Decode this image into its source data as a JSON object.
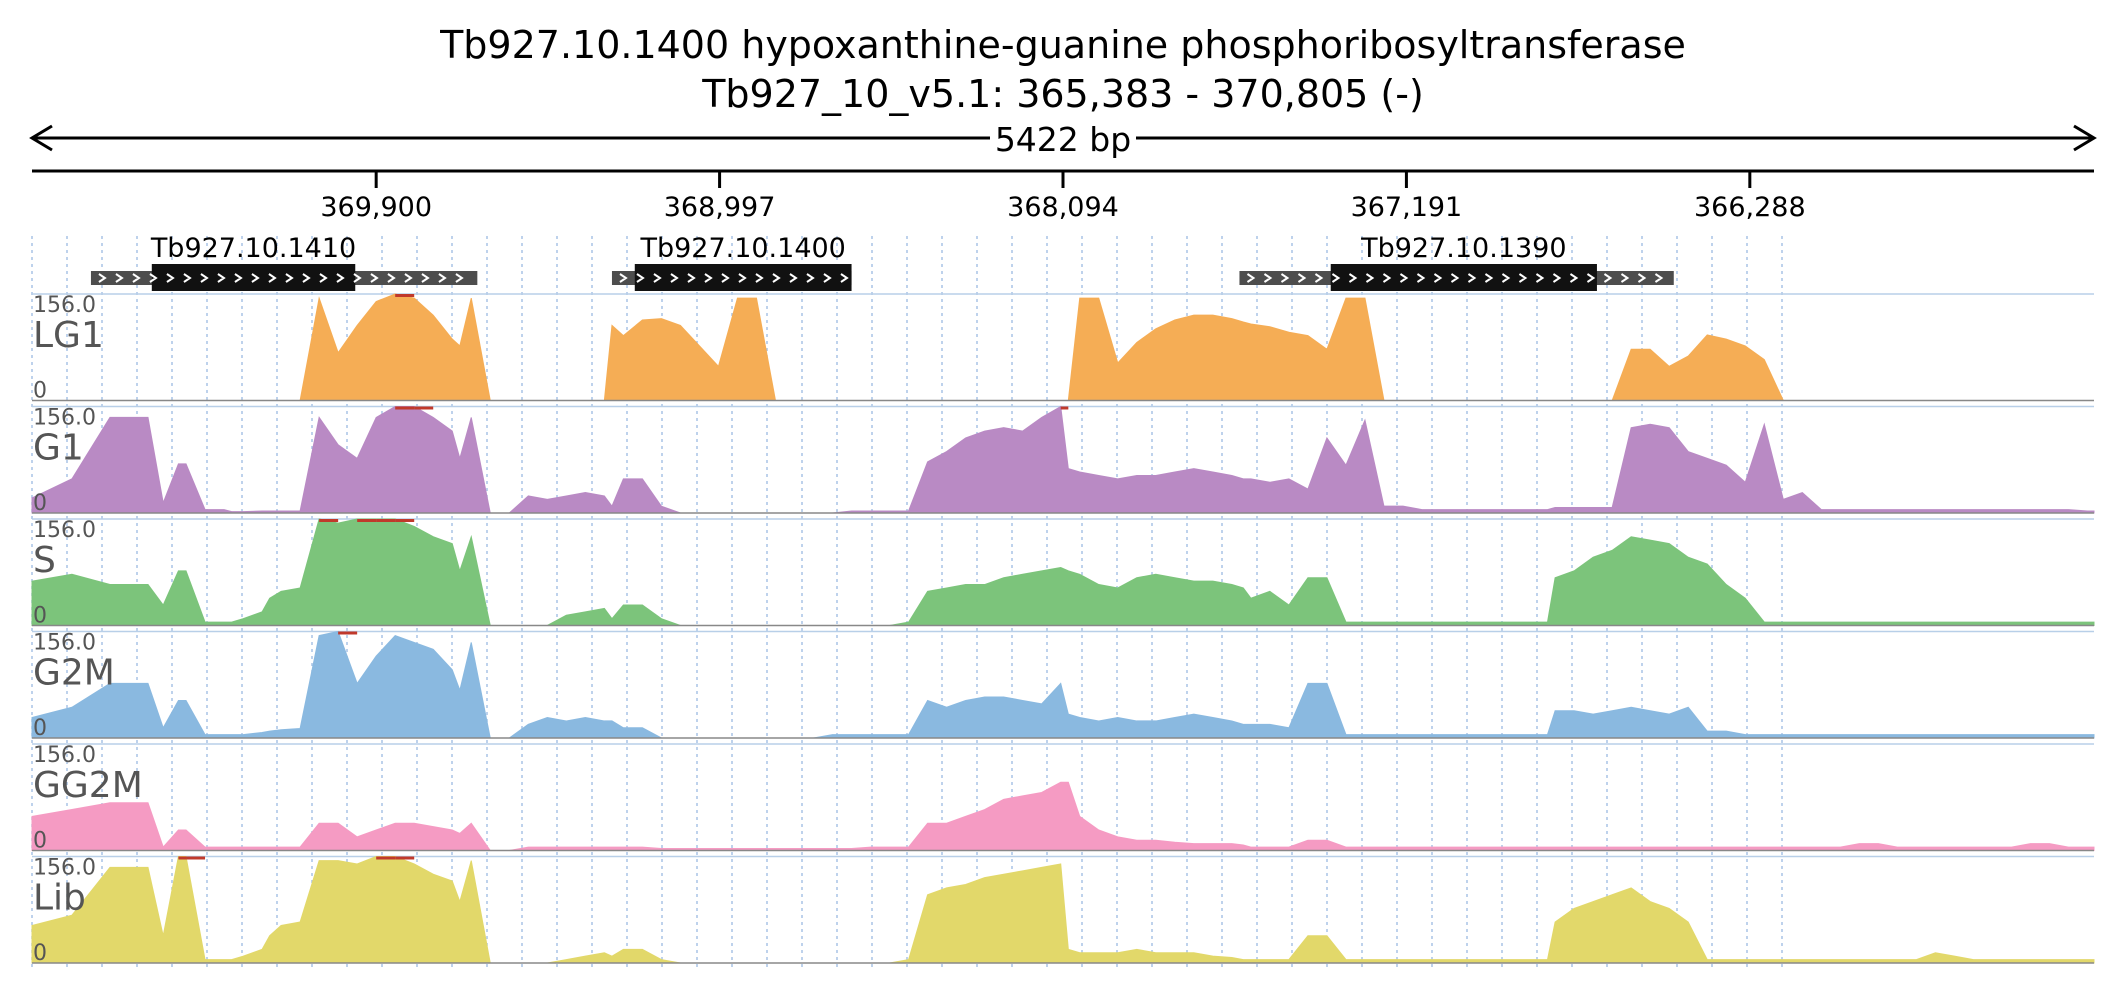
{
  "header": {
    "title": "Tb927.10.1400  hypoxanthine-guanine phosphoribosyltransferase",
    "locus": "Tb927_10_v5.1: 365,383 - 370,805 (-)",
    "span_label": "5422 bp"
  },
  "chart_data": {
    "type": "area",
    "title": "Tb927.10.1400  hypoxanthine-guanine phosphoribosyltransferase",
    "region": {
      "chrom": "Tb927_10_v5.1",
      "start": 365383,
      "end": 370805,
      "strand": "-"
    },
    "xlim": [
      370805,
      365383
    ],
    "ylim": [
      0,
      156.0
    ],
    "x_ticks": [
      369900,
      368997,
      368094,
      367191,
      366288
    ],
    "x_tick_labels": [
      "369,900",
      "368,997",
      "368,094",
      "367,191",
      "366,288"
    ],
    "genes": [
      {
        "name": "Tb927.10.1410",
        "start": 370650,
        "end": 369634,
        "cds_start": 370490,
        "cds_end": 369955
      },
      {
        "name": "Tb927.10.1400",
        "start": 369280,
        "end": 368650,
        "cds_start": 369220,
        "cds_end": 368650
      },
      {
        "name": "Tb927.10.1390",
        "start": 367630,
        "end": 366488,
        "cds_start": 367390,
        "cds_end": 366690
      }
    ],
    "series_x": [
      370805,
      370700,
      370600,
      370500,
      370460,
      370420,
      370400,
      370350,
      370300,
      370280,
      370250,
      370200,
      370180,
      370150,
      370100,
      370050,
      370000,
      369950,
      369900,
      369850,
      369800,
      369750,
      369700,
      369680,
      369650,
      369600,
      369550,
      369500,
      369450,
      369400,
      369350,
      369300,
      369280,
      369250,
      369200,
      369150,
      369100,
      369050,
      369000,
      368950,
      368900,
      368850,
      368800,
      368750,
      368700,
      368650,
      368600,
      368550,
      368500,
      368450,
      368400,
      368350,
      368300,
      368250,
      368200,
      368150,
      368100,
      368080,
      368050,
      368000,
      367950,
      367900,
      367850,
      367800,
      367750,
      367700,
      367650,
      367620,
      367600,
      367550,
      367500,
      367450,
      367400,
      367350,
      367300,
      367250,
      367200,
      367150,
      367100,
      367050,
      367000,
      366950,
      366900,
      366850,
      366820,
      366800,
      366750,
      366700,
      366650,
      366600,
      366550,
      366500,
      366450,
      366400,
      366350,
      366300,
      366250,
      366200,
      366150,
      366100,
      366050,
      366000,
      365950,
      365900,
      365850,
      365800,
      365750,
      365700,
      365650,
      365600,
      365550,
      365500,
      365450,
      365400,
      365383
    ],
    "series": [
      {
        "name": "LG1",
        "color": "#f5ad55",
        "values": [
          0,
          0,
          0,
          0,
          0,
          0,
          0,
          0,
          0,
          0,
          0,
          0,
          0,
          0,
          0,
          150,
          70,
          110,
          145,
          156,
          150,
          125,
          90,
          80,
          150,
          0,
          0,
          0,
          0,
          0,
          0,
          0,
          110,
          95,
          118,
          120,
          110,
          80,
          50,
          150,
          150,
          0,
          0,
          0,
          0,
          0,
          0,
          0,
          0,
          0,
          0,
          0,
          0,
          0,
          0,
          0,
          0,
          0,
          150,
          150,
          55,
          85,
          105,
          118,
          125,
          125,
          120,
          115,
          112,
          108,
          100,
          95,
          75,
          150,
          150,
          0,
          0,
          0,
          0,
          0,
          0,
          0,
          0,
          0,
          0,
          0,
          0,
          0,
          0,
          75,
          75,
          50,
          65,
          96,
          90,
          80,
          60,
          0,
          0,
          0,
          0,
          0,
          0,
          0,
          0,
          0,
          0,
          0,
          0,
          0,
          0,
          0,
          0,
          0,
          0
        ]
      },
      {
        "name": "G1",
        "color": "#b98ac4",
        "values": [
          22,
          50,
          140,
          140,
          15,
          72,
          72,
          5,
          5,
          2,
          2,
          3,
          3,
          3,
          3,
          140,
          100,
          80,
          140,
          156,
          156,
          140,
          120,
          80,
          140,
          0,
          0,
          25,
          20,
          25,
          30,
          25,
          10,
          50,
          50,
          10,
          0,
          0,
          0,
          0,
          0,
          0,
          0,
          0,
          0,
          3,
          3,
          3,
          3,
          75,
          90,
          110,
          120,
          125,
          120,
          140,
          156,
          65,
          60,
          55,
          50,
          55,
          55,
          60,
          65,
          60,
          55,
          50,
          50,
          45,
          50,
          35,
          110,
          70,
          136,
          10,
          10,
          5,
          5,
          5,
          5,
          5,
          5,
          5,
          5,
          8,
          8,
          8,
          8,
          125,
          130,
          125,
          90,
          80,
          70,
          45,
          130,
          20,
          30,
          5,
          5,
          5,
          5,
          5,
          5,
          5,
          5,
          5,
          5,
          5,
          5,
          5,
          5,
          3,
          3
        ]
      },
      {
        "name": "S",
        "color": "#7cc47b",
        "values": [
          65,
          75,
          60,
          60,
          30,
          80,
          80,
          5,
          5,
          5,
          10,
          20,
          40,
          50,
          55,
          156,
          150,
          156,
          156,
          156,
          145,
          130,
          120,
          80,
          130,
          0,
          0,
          0,
          0,
          15,
          20,
          25,
          10,
          30,
          30,
          10,
          0,
          0,
          0,
          0,
          0,
          0,
          0,
          0,
          0,
          0,
          0,
          0,
          5,
          50,
          55,
          60,
          60,
          70,
          75,
          80,
          85,
          80,
          75,
          60,
          55,
          70,
          75,
          70,
          65,
          65,
          60,
          55,
          40,
          50,
          30,
          70,
          70,
          5,
          5,
          5,
          5,
          5,
          5,
          5,
          5,
          5,
          5,
          5,
          5,
          70,
          80,
          100,
          110,
          130,
          125,
          120,
          100,
          90,
          60,
          40,
          5,
          5,
          5,
          5,
          5,
          5,
          5,
          5,
          5,
          5,
          5,
          5,
          5,
          5,
          5,
          5,
          5,
          5,
          5
        ]
      },
      {
        "name": "G2M",
        "color": "#8ab9e0",
        "values": [
          30,
          45,
          80,
          80,
          15,
          55,
          55,
          5,
          5,
          5,
          5,
          8,
          10,
          12,
          14,
          150,
          156,
          80,
          120,
          150,
          140,
          130,
          100,
          70,
          140,
          0,
          0,
          20,
          30,
          25,
          30,
          25,
          25,
          15,
          15,
          0,
          0,
          0,
          0,
          0,
          0,
          0,
          0,
          0,
          5,
          5,
          5,
          5,
          5,
          55,
          45,
          55,
          60,
          60,
          55,
          50,
          80,
          35,
          30,
          25,
          30,
          25,
          25,
          30,
          35,
          30,
          25,
          20,
          20,
          20,
          15,
          80,
          80,
          5,
          5,
          5,
          5,
          5,
          5,
          5,
          5,
          5,
          5,
          5,
          5,
          40,
          40,
          35,
          40,
          45,
          40,
          35,
          45,
          10,
          10,
          5,
          5,
          5,
          5,
          5,
          5,
          5,
          5,
          5,
          5,
          5,
          5,
          5,
          5,
          5,
          5,
          5,
          5,
          5,
          5
        ]
      },
      {
        "name": "GG2M",
        "color": "#f59bc3",
        "values": [
          50,
          60,
          70,
          70,
          5,
          30,
          30,
          5,
          5,
          5,
          5,
          5,
          5,
          5,
          5,
          40,
          40,
          20,
          30,
          40,
          40,
          35,
          30,
          25,
          40,
          0,
          0,
          5,
          5,
          5,
          5,
          5,
          5,
          5,
          5,
          3,
          3,
          3,
          3,
          3,
          3,
          3,
          3,
          3,
          3,
          3,
          5,
          5,
          5,
          40,
          40,
          50,
          60,
          75,
          80,
          85,
          100,
          100,
          50,
          30,
          20,
          15,
          15,
          12,
          10,
          10,
          10,
          8,
          5,
          5,
          5,
          15,
          15,
          5,
          5,
          5,
          5,
          5,
          5,
          5,
          5,
          5,
          5,
          5,
          5,
          5,
          5,
          5,
          5,
          5,
          5,
          5,
          5,
          5,
          5,
          5,
          5,
          5,
          5,
          5,
          5,
          10,
          10,
          5,
          5,
          5,
          5,
          5,
          5,
          5,
          10,
          10,
          5,
          5,
          5
        ]
      },
      {
        "name": "Lib",
        "color": "#e2d86a",
        "values": [
          55,
          70,
          140,
          140,
          40,
          156,
          156,
          5,
          5,
          5,
          10,
          20,
          40,
          55,
          60,
          150,
          150,
          145,
          156,
          156,
          145,
          130,
          120,
          90,
          150,
          0,
          0,
          0,
          0,
          5,
          10,
          15,
          10,
          20,
          20,
          5,
          0,
          0,
          0,
          0,
          0,
          0,
          0,
          0,
          0,
          0,
          0,
          0,
          5,
          100,
          110,
          115,
          125,
          130,
          135,
          140,
          145,
          20,
          15,
          15,
          15,
          20,
          15,
          15,
          15,
          10,
          8,
          5,
          5,
          5,
          5,
          40,
          40,
          5,
          5,
          5,
          5,
          5,
          5,
          5,
          5,
          5,
          5,
          5,
          5,
          60,
          80,
          90,
          100,
          110,
          90,
          80,
          60,
          5,
          5,
          5,
          5,
          5,
          5,
          5,
          5,
          5,
          5,
          5,
          5,
          15,
          10,
          5,
          5,
          5,
          5,
          5,
          5,
          5,
          5
        ]
      }
    ]
  },
  "scale": {
    "max_label": "156.0",
    "min_label": "0"
  }
}
